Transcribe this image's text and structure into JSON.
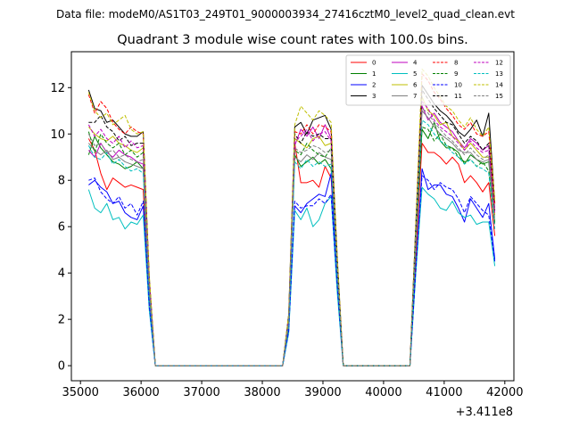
{
  "header": {
    "data_file": "Data file: modeM0/AS1T03_249T01_9000003934_27416cztM0_level2_quad_clean.evt"
  },
  "chart_data": {
    "type": "line",
    "title": "Quadrant 3 module wise count rates with 100.0s bins.",
    "xlabel": "",
    "ylabel": "",
    "x_offset_label": "+3.411e8",
    "xlim": [
      34850,
      42150
    ],
    "ylim": [
      -0.65,
      13.55
    ],
    "xticks": [
      35000,
      36000,
      37000,
      38000,
      39000,
      40000,
      41000,
      42000
    ],
    "xtick_labels": [
      "35000",
      "36000",
      "37000",
      "38000",
      "39000",
      "40000",
      "41000",
      "42000"
    ],
    "yticks": [
      0,
      2,
      4,
      6,
      8,
      10,
      12
    ],
    "ytick_labels": [
      "0",
      "2",
      "4",
      "6",
      "8",
      "10",
      "12"
    ],
    "grid": false,
    "legend_position": "upper right",
    "legend_columns": 4,
    "x": [
      35135,
      35235,
      35335,
      35435,
      35535,
      35635,
      35735,
      35835,
      35935,
      36035,
      36135,
      36235,
      36335,
      38335,
      38435,
      38535,
      38635,
      38735,
      38835,
      38935,
      39035,
      39135,
      39235,
      39335,
      40435,
      40535,
      40635,
      40735,
      40835,
      40935,
      41035,
      41135,
      41235,
      41335,
      41435,
      41535,
      41635,
      41735,
      41835
    ],
    "gaps_after_index": [
      12,
      23
    ],
    "series": [
      {
        "name": "0",
        "color": "#ff0000",
        "dash": "solid",
        "values": [
          9.8,
          9.3,
          8.3,
          7.6,
          8.1,
          7.9,
          7.7,
          7.8,
          7.7,
          7.6,
          3.0,
          0.0,
          0.0,
          0.0,
          1.6,
          9.6,
          7.9,
          7.9,
          8.0,
          7.7,
          8.6,
          8.1,
          3.9,
          0.0,
          0.0,
          5.0,
          9.6,
          9.2,
          9.2,
          9.0,
          8.7,
          9.0,
          8.7,
          7.9,
          8.2,
          7.9,
          7.5,
          7.9,
          5.6
        ]
      },
      {
        "name": "1",
        "color": "#008000",
        "dash": "solid",
        "values": [
          9.1,
          9.9,
          9.4,
          9.1,
          8.8,
          8.7,
          8.5,
          8.6,
          8.8,
          8.5,
          3.2,
          0.0,
          0.0,
          0.0,
          1.9,
          9.1,
          8.6,
          8.8,
          9.0,
          8.7,
          8.9,
          8.5,
          4.1,
          0.0,
          0.0,
          5.6,
          10.2,
          9.8,
          10.5,
          9.7,
          9.4,
          9.4,
          9.2,
          8.7,
          9.1,
          8.9,
          8.7,
          8.8,
          6.2
        ]
      },
      {
        "name": "2",
        "color": "#0000ff",
        "dash": "solid",
        "values": [
          7.8,
          8.0,
          7.7,
          7.5,
          7.0,
          7.1,
          6.6,
          6.4,
          6.3,
          6.9,
          2.5,
          0.0,
          0.0,
          0.0,
          1.5,
          6.9,
          6.6,
          7.0,
          7.2,
          7.4,
          7.3,
          8.3,
          3.4,
          0.0,
          0.0,
          4.3,
          8.5,
          7.6,
          7.8,
          7.8,
          7.4,
          7.3,
          6.8,
          6.2,
          7.2,
          6.8,
          6.4,
          7.0,
          4.6
        ]
      },
      {
        "name": "3",
        "color": "#000000",
        "dash": "solid",
        "values": [
          11.9,
          11.1,
          11.0,
          10.5,
          10.6,
          10.3,
          10.0,
          9.9,
          9.9,
          10.1,
          3.8,
          0.0,
          0.0,
          0.0,
          2.2,
          10.3,
          10.5,
          10.0,
          10.6,
          10.7,
          10.8,
          10.2,
          4.7,
          0.0,
          0.0,
          6.3,
          12.1,
          11.7,
          11.3,
          11.0,
          10.8,
          10.5,
          10.1,
          9.9,
          10.2,
          10.6,
          9.9,
          10.9,
          7.0
        ]
      },
      {
        "name": "4",
        "color": "#bf00bf",
        "dash": "solid",
        "values": [
          9.3,
          9.0,
          9.6,
          9.2,
          9.0,
          9.3,
          9.1,
          9.0,
          8.8,
          8.7,
          3.3,
          0.0,
          0.0,
          0.0,
          1.9,
          9.5,
          10.2,
          9.9,
          10.3,
          9.8,
          10.4,
          9.8,
          4.3,
          0.0,
          0.0,
          5.8,
          11.2,
          10.6,
          10.9,
          10.5,
          10.3,
          10.1,
          9.7,
          9.4,
          9.8,
          9.6,
          9.3,
          9.5,
          6.7
        ]
      },
      {
        "name": "5",
        "color": "#00bfbf",
        "dash": "solid",
        "values": [
          7.6,
          6.8,
          6.6,
          7.0,
          6.3,
          6.4,
          5.9,
          6.2,
          6.1,
          6.5,
          2.4,
          0.0,
          0.0,
          0.0,
          1.4,
          6.7,
          6.3,
          6.8,
          6.0,
          6.3,
          7.0,
          7.3,
          3.2,
          0.0,
          0.0,
          4.1,
          7.7,
          7.4,
          7.2,
          6.8,
          6.7,
          7.1,
          6.6,
          6.4,
          6.5,
          6.1,
          6.2,
          6.2,
          4.3
        ]
      },
      {
        "name": "6",
        "color": "#bfbf00",
        "dash": "solid",
        "values": [
          10.3,
          10.0,
          9.8,
          9.7,
          9.9,
          9.6,
          9.5,
          9.3,
          9.2,
          9.4,
          3.6,
          0.0,
          0.0,
          0.0,
          2.0,
          9.8,
          9.6,
          9.4,
          9.8,
          9.9,
          9.5,
          9.6,
          4.4,
          0.0,
          0.0,
          6.0,
          11.6,
          11.0,
          10.8,
          10.4,
          10.5,
          9.9,
          9.7,
          9.3,
          9.6,
          9.3,
          9.0,
          9.0,
          6.5
        ]
      },
      {
        "name": "7",
        "color": "#808080",
        "dash": "solid",
        "values": [
          9.6,
          9.3,
          9.1,
          9.3,
          8.9,
          9.0,
          8.8,
          8.7,
          8.6,
          8.5,
          3.2,
          0.0,
          0.0,
          0.0,
          1.8,
          9.0,
          8.8,
          9.1,
          8.9,
          9.2,
          9.0,
          8.9,
          4.0,
          0.0,
          0.0,
          5.6,
          11.0,
          10.7,
          10.3,
          10.0,
          9.8,
          9.6,
          9.3,
          9.2,
          9.2,
          8.9,
          8.8,
          8.9,
          6.1
        ]
      },
      {
        "name": "8",
        "color": "#ff0000",
        "dash": "dashed",
        "values": [
          11.7,
          10.9,
          11.4,
          11.1,
          10.5,
          10.2,
          10.0,
          10.3,
          10.1,
          10.0,
          3.8,
          0.0,
          0.0,
          0.0,
          2.1,
          10.1,
          10.0,
          10.4,
          10.0,
          10.4,
          10.3,
          10.1,
          4.6,
          0.0,
          0.0,
          6.2,
          12.6,
          12.3,
          11.8,
          11.5,
          11.1,
          10.8,
          10.4,
          10.2,
          10.5,
          10.0,
          9.9,
          10.1,
          7.0
        ]
      },
      {
        "name": "9",
        "color": "#008000",
        "dash": "dashed",
        "values": [
          10.1,
          9.2,
          10.0,
          9.6,
          9.4,
          9.6,
          9.1,
          9.3,
          9.0,
          9.2,
          3.4,
          0.0,
          0.0,
          0.0,
          1.9,
          9.3,
          9.1,
          9.6,
          9.3,
          9.1,
          9.0,
          9.4,
          4.2,
          0.0,
          0.0,
          5.7,
          10.3,
          10.2,
          9.7,
          10.0,
          9.5,
          9.4,
          9.0,
          8.8,
          8.9,
          8.6,
          8.8,
          8.4,
          6.1
        ]
      },
      {
        "name": "10",
        "color": "#0000ff",
        "dash": "dashed",
        "values": [
          8.0,
          8.1,
          7.5,
          7.2,
          7.0,
          7.3,
          6.8,
          7.0,
          6.5,
          7.1,
          2.6,
          0.0,
          0.0,
          0.0,
          1.5,
          7.1,
          6.8,
          6.9,
          6.9,
          7.2,
          7.0,
          7.4,
          3.5,
          0.0,
          0.0,
          4.3,
          8.2,
          8.0,
          7.6,
          7.9,
          7.7,
          7.6,
          7.2,
          6.6,
          7.3,
          7.0,
          6.7,
          6.5,
          4.5
        ]
      },
      {
        "name": "11",
        "color": "#000000",
        "dash": "dashed",
        "values": [
          10.5,
          10.5,
          10.8,
          10.3,
          10.1,
          9.7,
          9.9,
          9.5,
          9.6,
          9.6,
          3.7,
          0.0,
          0.0,
          0.0,
          2.1,
          10.0,
          9.6,
          10.1,
          9.9,
          10.0,
          9.8,
          9.8,
          4.5,
          0.0,
          0.0,
          6.1,
          11.9,
          11.5,
          11.1,
          10.8,
          10.5,
          10.4,
          10.0,
          9.6,
          9.9,
          9.7,
          9.3,
          9.6,
          6.7
        ]
      },
      {
        "name": "12",
        "color": "#bf00bf",
        "dash": "dashed",
        "values": [
          10.4,
          9.9,
          10.2,
          9.8,
          9.6,
          9.9,
          9.4,
          9.7,
          9.4,
          9.5,
          3.6,
          0.0,
          0.0,
          0.0,
          2.0,
          9.7,
          9.9,
          10.2,
          9.7,
          10.0,
          10.1,
          9.7,
          4.5,
          0.0,
          0.0,
          6.0,
          11.4,
          11.1,
          10.6,
          10.3,
          10.1,
          9.9,
          9.6,
          9.3,
          9.7,
          9.4,
          9.2,
          9.3,
          6.6
        ]
      },
      {
        "name": "13",
        "color": "#00bfbf",
        "dash": "dashed",
        "values": [
          9.5,
          9.0,
          8.9,
          9.2,
          8.7,
          8.9,
          8.6,
          8.4,
          8.5,
          8.3,
          3.1,
          0.0,
          0.0,
          0.0,
          1.8,
          8.8,
          8.5,
          8.9,
          8.6,
          8.8,
          8.6,
          8.7,
          4.0,
          0.0,
          0.0,
          5.5,
          10.6,
          10.4,
          10.0,
          9.7,
          9.5,
          9.2,
          9.0,
          8.7,
          8.9,
          8.6,
          8.5,
          8.3,
          5.9
        ]
      },
      {
        "name": "14",
        "color": "#bfbf00",
        "dash": "dashed",
        "values": [
          11.8,
          11.0,
          10.7,
          10.9,
          10.4,
          10.6,
          10.8,
          10.2,
          10.0,
          10.1,
          3.9,
          0.0,
          0.0,
          0.0,
          2.2,
          10.4,
          11.2,
          10.9,
          10.6,
          11.0,
          10.8,
          10.5,
          4.8,
          0.0,
          0.0,
          6.4,
          12.8,
          12.5,
          12.0,
          11.6,
          11.2,
          11.0,
          10.6,
          10.3,
          10.7,
          10.2,
          9.9,
          10.3,
          7.1
        ]
      },
      {
        "name": "15",
        "color": "#808080",
        "dash": "dashed",
        "values": [
          10.0,
          9.5,
          9.6,
          9.2,
          9.3,
          9.0,
          9.1,
          8.9,
          8.8,
          8.9,
          3.4,
          0.0,
          0.0,
          0.0,
          1.9,
          9.4,
          9.2,
          9.3,
          9.5,
          9.4,
          9.2,
          9.3,
          4.2,
          0.0,
          0.0,
          5.8,
          11.1,
          10.9,
          10.5,
          10.2,
          9.9,
          9.7,
          9.4,
          9.1,
          9.4,
          9.1,
          8.9,
          9.1,
          6.3
        ]
      }
    ]
  }
}
